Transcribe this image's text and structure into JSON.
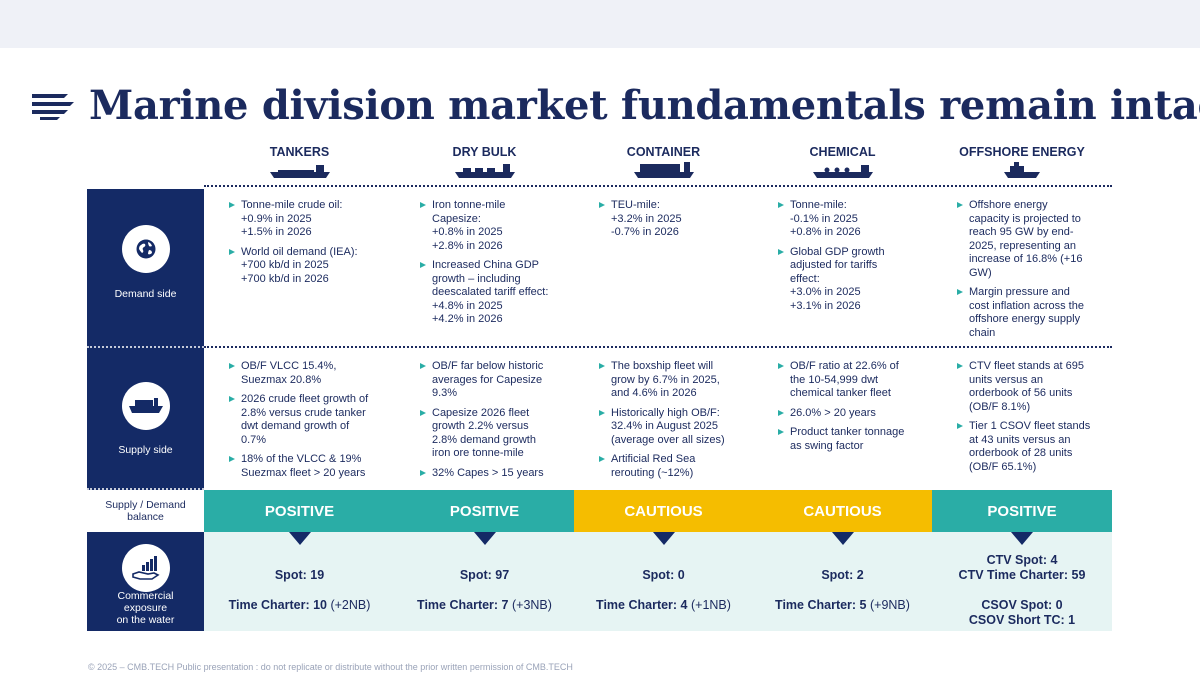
{
  "title": "Marine division market fundamentals remain intact",
  "footer": "© 2025 – CMB.TECH Public presentation : do not replicate or distribute without the prior written permission of CMB.TECH",
  "rows": {
    "demand": "Demand side",
    "supply": "Supply side",
    "balance": "Supply / Demand balance",
    "exposure": "Commercial exposure on the water"
  },
  "icons": {
    "demand": "globe-icon",
    "supply": "cargo-ship-icon",
    "exposure": "hand-chart-icon"
  },
  "colors": {
    "navy": "#142a66",
    "teal": "#2aada6",
    "amber": "#f5bd00",
    "light_teal": "#e6f4f3"
  },
  "segments": [
    {
      "name": "TANKERS",
      "icon": "tanker-ship-icon",
      "demand": [
        [
          "Tonne-mile crude oil:",
          "+0.9% in 2025",
          "+1.5% in 2026"
        ],
        [
          "World oil demand (IEA):",
          "+700 kb/d in 2025",
          "+700 kb/d in 2026"
        ]
      ],
      "supply": [
        [
          "OB/F VLCC 15.4%,",
          "Suezmax 20.8%"
        ],
        [
          "2026 crude fleet growth of",
          "2.8% versus crude tanker",
          "dwt demand growth of",
          "0.7%"
        ],
        [
          "18% of the VLCC & 19%",
          "Suezmax fleet > 20 years"
        ]
      ],
      "balance": "POSITIVE",
      "exposure": [
        {
          "bold": "Spot: 19",
          "rest": ""
        },
        {
          "bold": "Time Charter: 10",
          "rest": " (+2NB)"
        }
      ]
    },
    {
      "name": "DRY BULK",
      "icon": "bulk-carrier-icon",
      "demand": [
        [
          "Iron tonne-mile",
          "Capesize:",
          "+0.8% in 2025",
          "+2.8% in 2026"
        ],
        [
          "Increased China GDP",
          "growth – including",
          "deescalated tariff effect:",
          "+4.8% in 2025",
          "+4.2% in 2026"
        ]
      ],
      "supply": [
        [
          "OB/F far below historic",
          "averages for Capesize",
          "9.3%"
        ],
        [
          "Capesize 2026 fleet",
          "growth 2.2% versus",
          "2.8% demand growth",
          "iron ore tonne-mile"
        ],
        [
          "32% Capes > 15 years"
        ]
      ],
      "balance": "POSITIVE",
      "exposure": [
        {
          "bold": "Spot: 97",
          "rest": ""
        },
        {
          "bold": "Time Charter: 7",
          "rest": " (+3NB)"
        }
      ]
    },
    {
      "name": "CONTAINER",
      "icon": "container-ship-icon",
      "demand": [
        [
          "TEU-mile:",
          "+3.2% in 2025",
          "-0.7% in 2026"
        ]
      ],
      "supply": [
        [
          "The boxship fleet will",
          "grow by 6.7% in 2025,",
          "and 4.6% in 2026"
        ],
        [
          "Historically high OB/F:",
          "32.4% in August 2025",
          "(average over all sizes)"
        ],
        [
          "Artificial Red Sea",
          "rerouting (~12%)"
        ]
      ],
      "balance": "CAUTIOUS",
      "exposure": [
        {
          "bold": "Spot: 0",
          "rest": ""
        },
        {
          "bold": "Time Charter: 4",
          "rest": " (+1NB)"
        }
      ]
    },
    {
      "name": "CHEMICAL",
      "icon": "chemical-tanker-icon",
      "demand": [
        [
          "Tonne-mile:",
          "-0.1% in 2025",
          "+0.8% in 2026"
        ],
        [
          "Global GDP growth",
          "adjusted for tariffs",
          "effect:",
          "+3.0% in 2025",
          "+3.1% in 2026"
        ]
      ],
      "supply": [
        [
          "OB/F ratio at 22.6% of",
          "the 10-54,999 dwt",
          "chemical tanker fleet"
        ],
        [
          "26.0% > 20 years"
        ],
        [
          "Product tanker tonnage",
          "as swing factor"
        ]
      ],
      "balance": "CAUTIOUS",
      "exposure": [
        {
          "bold": "Spot: 2",
          "rest": ""
        },
        {
          "bold": "Time Charter: 5",
          "rest": " (+9NB)"
        }
      ]
    },
    {
      "name": "OFFSHORE ENERGY",
      "icon": "offshore-vessel-icon",
      "demand": [
        [
          "Offshore energy",
          "capacity is projected to",
          "reach 95 GW by end-",
          "2025, representing an",
          "increase of 16.8% (+16",
          "GW)"
        ],
        [
          "Margin pressure and",
          "cost inflation across the",
          "offshore energy supply",
          "chain"
        ]
      ],
      "supply": [
        [
          "CTV fleet stands at 695",
          "units versus an",
          "orderbook of 56 units",
          "(OB/F 8.1%)"
        ],
        [
          "Tier 1 CSOV fleet stands",
          "at 43 units versus an",
          "orderbook of 28 units",
          "(OB/F 65.1%)"
        ]
      ],
      "balance": "POSITIVE",
      "exposure": [
        {
          "bold": "CTV Spot: 4",
          "rest": ""
        },
        {
          "bold": "CTV Time Charter: 59",
          "rest": ""
        },
        {
          "bold": "CSOV Spot: 0",
          "rest": ""
        },
        {
          "bold": "CSOV Short TC: 1",
          "rest": ""
        }
      ]
    }
  ]
}
